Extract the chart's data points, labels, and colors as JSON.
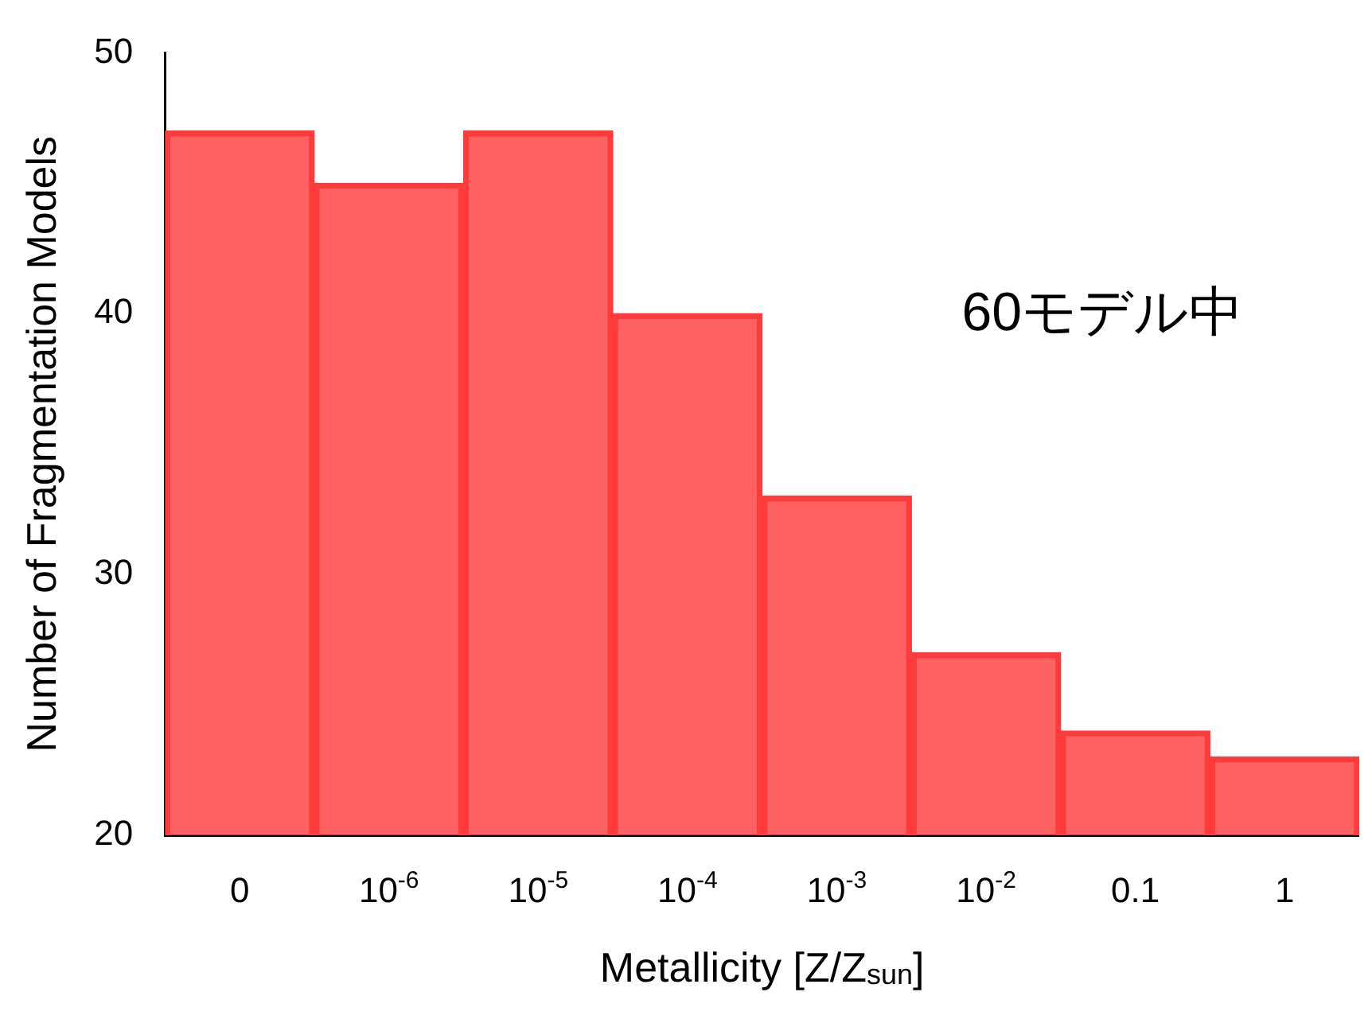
{
  "chart_data": {
    "type": "bar",
    "categories": [
      "0",
      "10$^{-6}$",
      "10$^{-5}$",
      "10$^{-4}$",
      "10$^{-3}$",
      "10$^{-2}$",
      "0.1",
      "1"
    ],
    "values": [
      47,
      45,
      47,
      40,
      33,
      27,
      24,
      23
    ],
    "color": "#ff3b3b",
    "xlabel": "Metallicity [Z/Z$_{sun}$]",
    "ylabel": "Number of Fragmentation Models",
    "ylim": [
      20,
      50
    ],
    "yticks": [
      20,
      30,
      40,
      50
    ],
    "annotations": [
      "60モデル中"
    ],
    "grid": false,
    "legend": false
  }
}
